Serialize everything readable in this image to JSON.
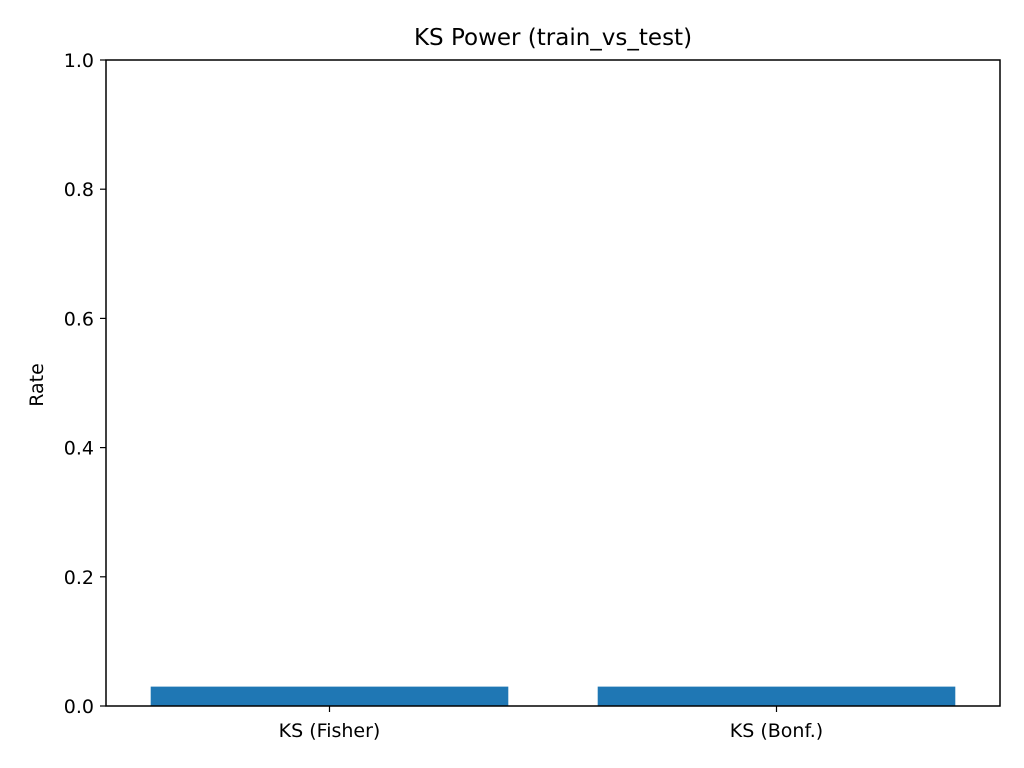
{
  "chart_data": {
    "type": "bar",
    "title": "KS Power (train_vs_test)",
    "xlabel": "",
    "ylabel": "Rate",
    "categories": [
      "KS (Fisher)",
      "KS (Bonf.)"
    ],
    "values": [
      0.03,
      0.03
    ],
    "ylim": [
      0,
      1.0
    ],
    "yticks": [
      0.0,
      0.2,
      0.4,
      0.6,
      0.8,
      1.0
    ],
    "ytick_labels": [
      "0.0",
      "0.2",
      "0.4",
      "0.6",
      "0.8",
      "1.0"
    ],
    "bar_color": "#1f77b4",
    "grid": false,
    "legend": "none"
  }
}
